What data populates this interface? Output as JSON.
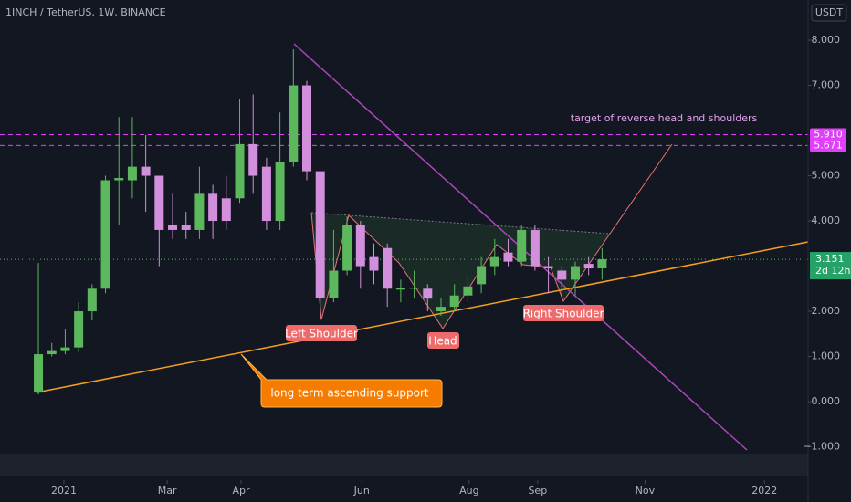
{
  "chart_data": {
    "type": "candlestick",
    "title": "1INCH / TetherUS, 1W, BINANCE",
    "currency": "USDT",
    "x": [
      0,
      1,
      2,
      3,
      4,
      5,
      6,
      7,
      8,
      9,
      10,
      11,
      12,
      13,
      14,
      15,
      16,
      17,
      18,
      19,
      20,
      21,
      22,
      23,
      24,
      25,
      26,
      27,
      28,
      29,
      30,
      31,
      32,
      33,
      34,
      35,
      36,
      37,
      38,
      39,
      40,
      41,
      42
    ],
    "open": [
      0.2,
      1.05,
      1.12,
      1.2,
      2.0,
      2.5,
      4.9,
      4.9,
      5.2,
      5.0,
      3.9,
      3.9,
      3.8,
      4.6,
      4.5,
      4.5,
      5.7,
      5.2,
      4.0,
      5.3,
      7.0,
      5.1,
      2.3,
      2.9,
      3.9,
      3.2,
      3.4,
      2.48,
      2.5,
      2.5,
      2.0,
      2.1,
      2.35,
      2.6,
      3.0,
      3.3,
      3.1,
      3.8,
      3.0,
      2.9,
      2.7,
      3.05,
      2.95
    ],
    "high": [
      3.07,
      1.3,
      1.6,
      2.2,
      2.6,
      5.0,
      6.3,
      6.3,
      5.9,
      5.0,
      4.6,
      4.2,
      5.2,
      4.8,
      5.0,
      6.7,
      6.8,
      5.4,
      6.4,
      7.8,
      7.1,
      5.1,
      3.8,
      4.1,
      4.0,
      3.5,
      3.5,
      2.7,
      2.9,
      2.6,
      2.3,
      2.6,
      2.8,
      3.2,
      3.6,
      3.6,
      3.9,
      3.9,
      3.2,
      3.0,
      3.1,
      3.2,
      3.4
    ],
    "low": [
      0.16,
      1.0,
      1.05,
      1.1,
      1.8,
      2.4,
      3.9,
      4.5,
      4.2,
      3.0,
      3.6,
      3.6,
      3.6,
      3.6,
      3.8,
      4.4,
      4.6,
      3.8,
      3.8,
      5.2,
      4.9,
      1.8,
      2.2,
      2.8,
      2.5,
      2.6,
      2.1,
      2.2,
      2.3,
      2.0,
      1.9,
      2.0,
      2.2,
      2.4,
      2.8,
      3.0,
      3.0,
      2.9,
      2.4,
      2.3,
      2.35,
      2.8,
      2.7
    ],
    "close": [
      1.05,
      1.12,
      1.2,
      2.0,
      2.5,
      4.9,
      4.95,
      5.2,
      5.0,
      3.8,
      3.8,
      3.8,
      4.6,
      4.0,
      4.0,
      5.7,
      5.0,
      4.0,
      5.3,
      7.0,
      5.1,
      2.3,
      2.9,
      3.9,
      3.0,
      2.9,
      2.5,
      2.52,
      2.52,
      2.28,
      2.1,
      2.35,
      2.55,
      3.0,
      3.2,
      3.1,
      3.8,
      3.0,
      2.95,
      2.7,
      3.0,
      2.95,
      3.151
    ],
    "up_color": "#5cb85c",
    "down_color": "#d18fdc",
    "xlim": [
      -2.86,
      57.35
    ],
    "xticks": [
      {
        "value": 1.9,
        "label": "2021"
      },
      {
        "value": 9.6,
        "label": "Mar"
      },
      {
        "value": 15.1,
        "label": "Apr"
      },
      {
        "value": 24.1,
        "label": "Jun"
      },
      {
        "value": 32.1,
        "label": "Aug"
      },
      {
        "value": 37.2,
        "label": "Sep"
      },
      {
        "value": 45.2,
        "label": "Nov"
      },
      {
        "value": 54.1,
        "label": "2022"
      }
    ],
    "ylim": [
      -1.07,
      8.89
    ],
    "yticks": [
      {
        "value": 8,
        "label": "8.000"
      },
      {
        "value": 7,
        "label": "7.000"
      },
      {
        "value": 5,
        "label": "5.000"
      },
      {
        "value": 4,
        "label": "4.000"
      },
      {
        "value": 2,
        "label": "2.000"
      },
      {
        "value": 1,
        "label": "1.000"
      },
      {
        "value": 0,
        "label": "0.000"
      },
      {
        "value": -1,
        "label": "−1.000"
      }
    ],
    "levels": [
      {
        "value": 5.91,
        "label": "5.910"
      },
      {
        "value": 5.671,
        "label": "5.671"
      }
    ],
    "level_color": "#e040fb",
    "last_price": {
      "value": 3.151,
      "label": "3.151"
    },
    "countdown": "2d 12h",
    "annotations": {
      "left_shoulder": "Left Shoulder",
      "head": "Head",
      "right_shoulder": "Right Shoulder",
      "target": "target of reverse head and shoulders",
      "support": "long term ascending support"
    }
  }
}
